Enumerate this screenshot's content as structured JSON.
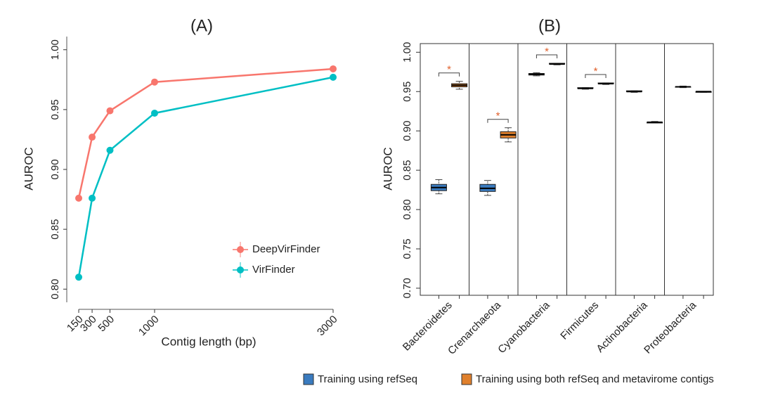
{
  "chart_data": [
    {
      "type": "line",
      "title": "(A)",
      "x_label": "Contig length (bp)",
      "y_label": "AUROC",
      "x": [
        150,
        300,
        500,
        1000,
        3000
      ],
      "series": [
        {
          "name": "DeepVirFinder",
          "color": "#f8766d",
          "values": [
            0.876,
            0.927,
            0.949,
            0.973,
            0.984
          ]
        },
        {
          "name": "VirFinder",
          "color": "#00bfc4",
          "values": [
            0.81,
            0.876,
            0.916,
            0.947,
            0.977
          ]
        }
      ],
      "xlim": [
        16,
        3126
      ],
      "xticks": [
        150,
        300,
        500,
        1000,
        3000
      ],
      "ylim": [
        0.789,
        1.011
      ],
      "yticks": [
        {
          "value": 0.8,
          "label": "0.80"
        },
        0.85,
        {
          "value": 0.9,
          "label": "0.90"
        },
        0.95,
        {
          "value": 1.0,
          "label": "1.00"
        }
      ],
      "legend": "lower-right"
    },
    {
      "type": "box",
      "title": "(B)",
      "y_label": "AUROC",
      "categories": [
        "Bacteroidetes",
        "Crenarchaeota",
        "Cyanobacteria",
        "Firmicutes",
        "Actinobacteria",
        "Proteobacteria"
      ],
      "series": [
        {
          "name": "Training using refSeq",
          "color": "#3a7bbf",
          "boxes": [
            {
              "min": 0.82,
              "q1": 0.824,
              "median": 0.828,
              "q3": 0.832,
              "max": 0.838
            },
            {
              "min": 0.818,
              "q1": 0.823,
              "median": 0.827,
              "q3": 0.832,
              "max": 0.837
            },
            {
              "min": 0.97,
              "q1": 0.971,
              "median": 0.972,
              "q3": 0.973,
              "max": 0.974
            },
            {
              "min": 0.953,
              "q1": 0.954,
              "median": 0.954,
              "q3": 0.955,
              "max": 0.955
            },
            {
              "min": 0.949,
              "q1": 0.95,
              "median": 0.95,
              "q3": 0.951,
              "max": 0.951
            },
            {
              "min": 0.955,
              "q1": 0.956,
              "median": 0.956,
              "q3": 0.956,
              "max": 0.957
            }
          ]
        },
        {
          "name": "Training using both refSeq and metavirome contigs",
          "color": "#e0802c",
          "boxes": [
            {
              "min": 0.953,
              "q1": 0.956,
              "median": 0.958,
              "q3": 0.96,
              "max": 0.963
            },
            {
              "min": 0.886,
              "q1": 0.891,
              "median": 0.895,
              "q3": 0.899,
              "max": 0.904
            },
            {
              "min": 0.984,
              "q1": 0.985,
              "median": 0.985,
              "q3": 0.986,
              "max": 0.986
            },
            {
              "min": 0.959,
              "q1": 0.96,
              "median": 0.96,
              "q3": 0.961,
              "max": 0.961
            },
            {
              "min": 0.91,
              "q1": 0.91,
              "median": 0.911,
              "q3": 0.911,
              "max": 0.912
            },
            {
              "min": 0.949,
              "q1": 0.949,
              "median": 0.95,
              "q3": 0.95,
              "max": 0.95
            }
          ]
        }
      ],
      "annotations": [
        {
          "category": "Bacteroidetes",
          "label": "*"
        },
        {
          "category": "Crenarchaeota",
          "label": "*"
        },
        {
          "category": "Cyanobacteria",
          "label": "*"
        },
        {
          "category": "Firmicutes",
          "label": "*"
        }
      ],
      "ylim": [
        0.691,
        1.011
      ],
      "yticks": [
        {
          "value": 0.7,
          "label": "0.70"
        },
        0.75,
        {
          "value": 0.8,
          "label": "0.80"
        },
        0.85,
        {
          "value": 0.9,
          "label": "0.90"
        },
        0.95,
        {
          "value": 1.0,
          "label": "1.00"
        }
      ],
      "legend": "bottom"
    }
  ]
}
